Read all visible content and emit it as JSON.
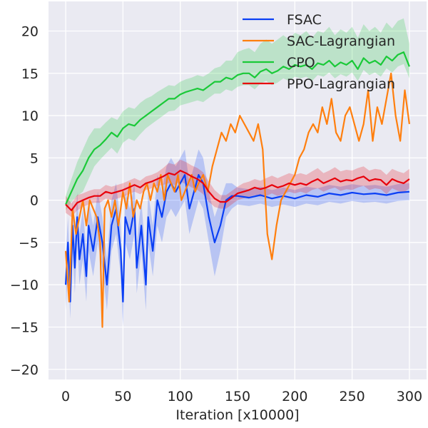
{
  "chart_data": {
    "type": "line",
    "title": "",
    "xlabel": "Iteration [x10000]",
    "ylabel": "",
    "xlim": [
      -15,
      315
    ],
    "ylim": [
      -21.2,
      23.5
    ],
    "xticks": [
      0,
      50,
      100,
      150,
      200,
      250,
      300
    ],
    "yticks": [
      -20,
      -15,
      -10,
      -5,
      0,
      5,
      10,
      15,
      20
    ],
    "grid": true,
    "legend_position": "top-right",
    "series": [
      {
        "name": "FSAC",
        "color": "#0a3ff5",
        "x": [
          0,
          2,
          4,
          6,
          8,
          10,
          12,
          15,
          18,
          20,
          24,
          28,
          32,
          36,
          40,
          44,
          48,
          50,
          52,
          56,
          60,
          62,
          66,
          70,
          72,
          76,
          80,
          84,
          88,
          92,
          96,
          100,
          104,
          108,
          112,
          116,
          120,
          125,
          130,
          135,
          140,
          145,
          150,
          160,
          170,
          180,
          190,
          200,
          210,
          220,
          230,
          240,
          250,
          260,
          270,
          280,
          290,
          300
        ],
        "y": [
          -10,
          -5,
          -12,
          -3,
          -8,
          -2,
          -7,
          -4,
          -9,
          -3,
          -6,
          -2,
          -5,
          -10,
          -3,
          -1,
          -6,
          -12,
          -2,
          -4,
          -1,
          -8,
          -3,
          -10,
          -2,
          -6,
          0,
          -2,
          1,
          2,
          1,
          2,
          3,
          -1,
          1,
          3,
          2,
          -2,
          -5,
          -3,
          0,
          0.5,
          0.5,
          0.3,
          0.6,
          0.2,
          0.5,
          0.2,
          0.6,
          0.4,
          0.8,
          0.6,
          0.9,
          0.7,
          0.8,
          0.6,
          0.9,
          1.0
        ],
        "band_low": [
          -13,
          -8,
          -14,
          -6,
          -11,
          -5,
          -10,
          -7,
          -12,
          -6,
          -9,
          -5,
          -8,
          -13,
          -6,
          -4,
          -9,
          -15,
          -5,
          -7,
          -4,
          -11,
          -6,
          -13,
          -5,
          -9,
          -3,
          -5,
          -2,
          -1,
          -2,
          -1,
          0,
          -4,
          -2,
          0,
          -1,
          -5,
          -9,
          -6,
          -2,
          -1,
          -0.5,
          -0.7,
          -0.4,
          -0.8,
          -0.5,
          -0.8,
          -0.4,
          -0.6,
          -0.2,
          -0.4,
          -0.1,
          -0.3,
          -0.2,
          -0.4,
          -0.1,
          0
        ],
        "band_high": [
          -7,
          -2,
          -9,
          0,
          -5,
          1,
          -4,
          -1,
          -6,
          0,
          -3,
          1,
          -2,
          -7,
          0,
          2,
          -3,
          -9,
          1,
          -1,
          2,
          -5,
          0,
          -7,
          1,
          -3,
          3,
          1,
          4,
          5,
          4,
          5,
          6,
          2,
          4,
          6,
          5,
          1,
          -2,
          0,
          2,
          2,
          1.5,
          1.3,
          1.6,
          1.2,
          1.5,
          1.2,
          1.6,
          1.4,
          1.8,
          1.6,
          1.9,
          1.7,
          1.8,
          1.6,
          1.9,
          2.0
        ]
      },
      {
        "name": "SAC-Lagrangian",
        "color": "#ff7f0e",
        "x": [
          0,
          3,
          6,
          9,
          12,
          15,
          18,
          21,
          24,
          27,
          30,
          32,
          34,
          37,
          40,
          43,
          46,
          50,
          53,
          56,
          59,
          62,
          65,
          68,
          71,
          74,
          77,
          80,
          83,
          86,
          89,
          92,
          95,
          98,
          101,
          104,
          107,
          110,
          113,
          116,
          120,
          124,
          128,
          132,
          136,
          140,
          144,
          148,
          152,
          156,
          160,
          164,
          168,
          172,
          176,
          180,
          184,
          188,
          192,
          196,
          200,
          204,
          208,
          212,
          216,
          220,
          224,
          228,
          232,
          236,
          240,
          244,
          248,
          252,
          256,
          260,
          264,
          268,
          272,
          276,
          280,
          284,
          288,
          292,
          296,
          300
        ],
        "y": [
          -6,
          -12,
          -1,
          -4,
          -2,
          0,
          -3,
          0,
          -1,
          -2,
          -5,
          -15,
          -1,
          0,
          -2,
          0,
          -3,
          1,
          -1,
          2,
          -2,
          0,
          -1,
          1,
          2,
          0,
          2,
          1,
          3,
          0,
          3,
          2,
          1,
          3,
          0,
          1,
          2,
          3,
          1,
          2,
          3,
          1,
          4,
          6,
          8,
          7,
          9,
          8,
          10,
          9,
          8,
          7,
          9,
          6,
          -4,
          -7,
          -3,
          0,
          1,
          2,
          3,
          5,
          6,
          8,
          9,
          8,
          11,
          9,
          12,
          8,
          7,
          10,
          11,
          9,
          7,
          9,
          13,
          7,
          11,
          9,
          12,
          15,
          10,
          7,
          13,
          9
        ],
        "band_low": null,
        "band_high": null
      },
      {
        "name": "CPO",
        "color": "#1ac938",
        "x": [
          0,
          5,
          10,
          15,
          20,
          25,
          30,
          35,
          40,
          45,
          50,
          55,
          60,
          65,
          70,
          75,
          80,
          85,
          90,
          95,
          100,
          105,
          110,
          115,
          120,
          125,
          130,
          135,
          140,
          145,
          150,
          155,
          160,
          165,
          170,
          175,
          180,
          185,
          190,
          195,
          200,
          205,
          210,
          215,
          220,
          225,
          230,
          235,
          240,
          245,
          250,
          255,
          260,
          265,
          270,
          275,
          280,
          285,
          290,
          295,
          300
        ],
        "y": [
          -0.5,
          1.0,
          2.5,
          3.5,
          5.0,
          6.0,
          6.5,
          7.2,
          8.0,
          7.5,
          8.5,
          9.0,
          8.8,
          9.5,
          10.0,
          10.5,
          11.0,
          11.5,
          12.0,
          12.0,
          12.5,
          12.8,
          13.0,
          13.2,
          13.0,
          13.5,
          14.0,
          14.0,
          14.5,
          14.3,
          14.8,
          15.0,
          15.0,
          14.5,
          15.2,
          15.5,
          15.0,
          15.3,
          15.8,
          15.5,
          16.0,
          15.8,
          16.0,
          15.5,
          16.2,
          16.0,
          16.5,
          15.8,
          16.3,
          16.0,
          16.5,
          15.5,
          16.8,
          16.2,
          16.5,
          16.0,
          17.0,
          16.5,
          17.2,
          17.5,
          15.8
        ],
        "band_low": [
          -1.2,
          -0.2,
          0.5,
          1.0,
          2.5,
          4.0,
          4.8,
          5.5,
          6.2,
          5.5,
          6.8,
          7.3,
          7.0,
          7.8,
          8.5,
          9.0,
          9.5,
          10.0,
          10.5,
          10.6,
          11.2,
          11.4,
          11.6,
          11.8,
          11.6,
          12.1,
          12.6,
          12.6,
          13.1,
          12.9,
          13.4,
          13.6,
          13.6,
          13.1,
          13.8,
          14.1,
          13.6,
          13.9,
          14.4,
          14.1,
          14.6,
          14.4,
          14.6,
          14.1,
          14.8,
          14.6,
          15.1,
          14.4,
          14.9,
          14.6,
          15.1,
          14.1,
          15.4,
          14.8,
          15.1,
          14.6,
          15.6,
          15.1,
          15.8,
          16.1,
          14.4
        ],
        "band_high": [
          0.5,
          2.5,
          4.5,
          6.0,
          7.5,
          8.5,
          8.5,
          9.2,
          9.8,
          9.5,
          10.5,
          11.0,
          10.8,
          11.5,
          12.0,
          12.3,
          12.8,
          13.2,
          13.6,
          13.5,
          14.0,
          14.3,
          14.5,
          14.8,
          14.6,
          15.0,
          15.6,
          15.8,
          16.5,
          16.5,
          17.5,
          17.8,
          18.0,
          17.5,
          18.5,
          19.0,
          18.5,
          19.0,
          19.5,
          19.0,
          19.8,
          19.5,
          20.0,
          19.2,
          20.0,
          19.8,
          20.5,
          19.5,
          20.2,
          19.8,
          20.5,
          19.2,
          20.8,
          20.0,
          20.5,
          19.8,
          21.0,
          20.3,
          21.2,
          21.5,
          18.5
        ]
      },
      {
        "name": "PPO-Lagrangian",
        "color": "#e8000b",
        "x": [
          0,
          5,
          10,
          15,
          20,
          25,
          30,
          35,
          40,
          45,
          50,
          55,
          60,
          65,
          70,
          75,
          80,
          85,
          90,
          95,
          100,
          105,
          110,
          115,
          120,
          125,
          130,
          135,
          140,
          145,
          150,
          155,
          160,
          165,
          170,
          175,
          180,
          185,
          190,
          195,
          200,
          205,
          210,
          215,
          220,
          225,
          230,
          235,
          240,
          245,
          250,
          255,
          260,
          265,
          270,
          275,
          280,
          285,
          290,
          295,
          300
        ],
        "y": [
          -0.5,
          -1.2,
          -0.3,
          0.0,
          0.3,
          0.5,
          0.5,
          1.0,
          0.8,
          1.0,
          1.2,
          1.5,
          1.8,
          1.5,
          2.0,
          2.2,
          2.5,
          2.8,
          3.2,
          3.0,
          3.5,
          3.2,
          2.8,
          2.5,
          2.0,
          1.0,
          0.2,
          -0.2,
          -0.2,
          0.3,
          0.8,
          1.0,
          1.2,
          1.5,
          1.3,
          1.5,
          1.8,
          1.5,
          1.7,
          2.0,
          1.8,
          2.0,
          1.8,
          2.2,
          2.5,
          2.0,
          2.3,
          2.6,
          2.2,
          2.4,
          2.3,
          2.6,
          2.8,
          2.3,
          2.5,
          2.4,
          1.8,
          2.5,
          2.2,
          2.0,
          2.5
        ],
        "band_low": [
          -1.5,
          -2.0,
          -1.2,
          -0.8,
          -0.5,
          -0.3,
          -0.3,
          0.2,
          0.0,
          0.2,
          0.4,
          0.7,
          1.0,
          0.7,
          1.2,
          1.4,
          1.7,
          1.8,
          2.0,
          1.8,
          2.2,
          1.9,
          1.5,
          1.2,
          0.7,
          -0.2,
          -0.8,
          -1.0,
          -1.0,
          -0.5,
          0.0,
          0.2,
          0.4,
          0.6,
          0.4,
          0.5,
          0.8,
          0.5,
          0.7,
          1.0,
          0.8,
          1.0,
          0.8,
          1.2,
          1.4,
          1.0,
          1.3,
          1.5,
          1.1,
          1.3,
          1.2,
          1.5,
          1.7,
          1.2,
          1.4,
          1.3,
          0.7,
          1.4,
          1.1,
          0.9,
          1.4
        ],
        "band_high": [
          0.5,
          -0.4,
          0.6,
          0.8,
          1.1,
          1.3,
          1.3,
          1.8,
          1.6,
          1.8,
          2.0,
          2.3,
          2.6,
          2.3,
          2.8,
          3.0,
          3.3,
          3.8,
          4.4,
          4.2,
          4.8,
          4.5,
          4.1,
          3.8,
          3.3,
          2.2,
          1.2,
          0.6,
          0.6,
          1.1,
          1.6,
          2.0,
          2.2,
          2.5,
          2.3,
          2.6,
          2.9,
          2.6,
          2.9,
          3.2,
          3.0,
          3.2,
          3.0,
          3.4,
          3.8,
          3.2,
          3.5,
          3.9,
          3.4,
          3.6,
          3.5,
          3.8,
          4.0,
          3.5,
          3.7,
          3.6,
          3.0,
          3.7,
          3.4,
          3.2,
          3.7
        ]
      }
    ]
  }
}
